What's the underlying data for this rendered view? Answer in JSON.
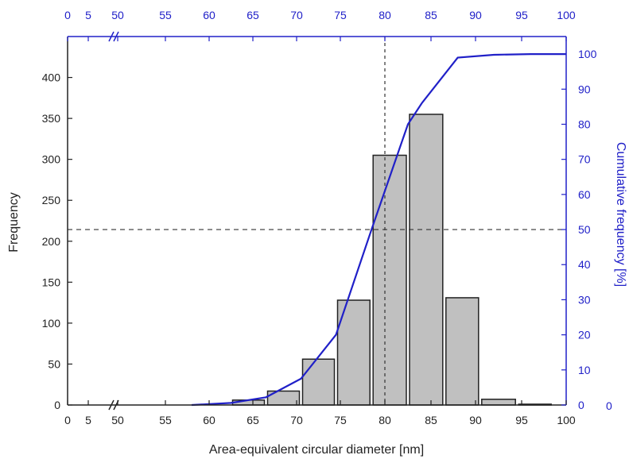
{
  "chart_data": {
    "type": "bar",
    "xlabel": "Area-equivalent circular diameter [nm]",
    "ylabel": "Frequency",
    "y2label": "Cumulative frequency [%]",
    "x_ticks": [
      "0",
      "5",
      "50",
      "55",
      "60",
      "65",
      "70",
      "75",
      "80",
      "85",
      "90",
      "95",
      "100"
    ],
    "x_axis_break": "between 5 and 50",
    "ylim": [
      0,
      450
    ],
    "y_ticks": [
      0,
      50,
      100,
      150,
      200,
      250,
      300,
      350,
      400
    ],
    "y2lim": [
      0,
      105
    ],
    "y2_ticks": [
      0,
      10,
      20,
      30,
      40,
      50,
      60,
      70,
      80,
      90,
      100
    ],
    "y2_zero_extra_label": "0",
    "bars": [
      {
        "bin_start": 62.5,
        "bin_end": 66.5,
        "frequency": 6
      },
      {
        "bin_start": 66.5,
        "bin_end": 70.5,
        "frequency": 17
      },
      {
        "bin_start": 70.5,
        "bin_end": 74.5,
        "frequency": 56
      },
      {
        "bin_start": 74.5,
        "bin_end": 78.5,
        "frequency": 128
      },
      {
        "bin_start": 78.5,
        "bin_end": 82.5,
        "frequency": 305
      },
      {
        "bin_start": 82.5,
        "bin_end": 86.5,
        "frequency": 355
      },
      {
        "bin_start": 86.5,
        "bin_end": 90.5,
        "frequency": 131
      },
      {
        "bin_start": 90.5,
        "bin_end": 94.5,
        "frequency": 7
      },
      {
        "bin_start": 94.5,
        "bin_end": 98.5,
        "frequency": 1
      }
    ],
    "cumulative": {
      "x": [
        58,
        62.5,
        66.5,
        70.5,
        74.5,
        78.5,
        82.5,
        84,
        88,
        92,
        96,
        100
      ],
      "y": [
        0,
        0.6,
        2.2,
        7.5,
        20,
        50,
        80,
        86,
        99,
        99.8,
        100,
        100
      ]
    },
    "reference_lines": {
      "x": 80,
      "y2": 50
    },
    "colors": {
      "bars": "#c0c0c0",
      "bar_edge": "#222222",
      "cumulative": "#2020c8",
      "right_axis": "#2020c8",
      "top_axis": "#2020c8"
    }
  }
}
